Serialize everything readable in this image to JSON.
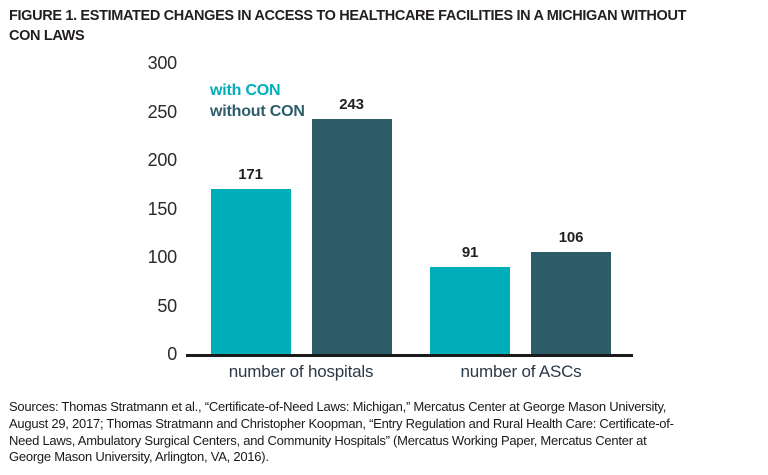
{
  "figure": {
    "title_lines": [
      "FIGURE 1. ESTIMATED CHANGES IN ACCESS TO HEALTHCARE FACILITIES IN A MICHIGAN WITHOUT",
      "CON LAWS"
    ],
    "source_lines": [
      "Sources: Thomas Stratmann et al., “Certificate-of-Need Laws: Michigan,” Mercatus Center at George Mason University,",
      "August 29, 2017; Thomas Stratmann and Christopher Koopman, “Entry Regulation and Rural Health Care: Certificate-of-",
      "Need Laws, Ambulatory Surgical Centers, and Community Hospitals” (Mercatus Working Paper, Mercatus Center at",
      "George Mason University, Arlington, VA, 2016)."
    ]
  },
  "chart_data": {
    "type": "bar",
    "title": "FIGURE 1. ESTIMATED CHANGES IN ACCESS TO HEALTHCARE FACILITIES IN A MICHIGAN WITHOUT CON LAWS",
    "categories": [
      "number of hospitals",
      "number of ASCs"
    ],
    "series": [
      {
        "name": "with CON",
        "color": "#00AEB9",
        "values": [
          171,
          91
        ]
      },
      {
        "name": "without CON",
        "color": "#2E5D6A",
        "values": [
          243,
          106
        ]
      }
    ],
    "yticks": [
      0,
      50,
      100,
      150,
      200,
      250,
      300
    ],
    "ylim": [
      0,
      300
    ],
    "grid": false,
    "legend_position": "top-left-inside",
    "value_labels": true,
    "axis_color": "#1A1A1A"
  }
}
